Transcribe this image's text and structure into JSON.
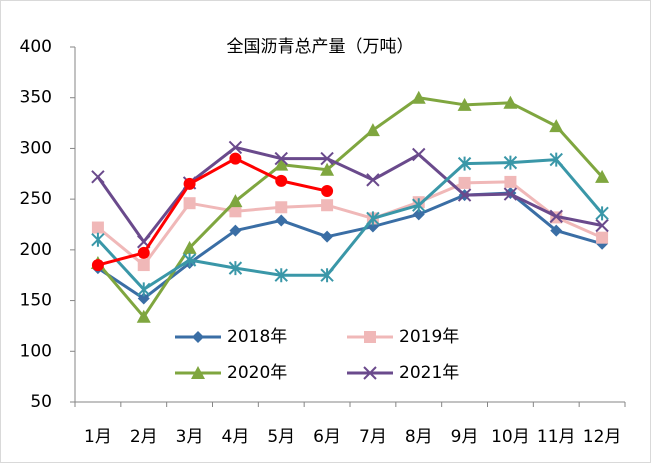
{
  "chart_data": {
    "type": "line",
    "title": "全国沥青总产量（万吨）",
    "categories": [
      "1月",
      "2月",
      "3月",
      "4月",
      "5月",
      "6月",
      "7月",
      "8月",
      "9月",
      "10月",
      "11月",
      "12月"
    ],
    "ylim": [
      50,
      400
    ],
    "yticks": [
      50,
      100,
      150,
      200,
      250,
      300,
      350,
      400
    ],
    "series": [
      {
        "name": "2018年",
        "color": "#3a6ea5",
        "marker": "diamond",
        "values": [
          182,
          152,
          187,
          219,
          229,
          213,
          223,
          235,
          254,
          256,
          219,
          206
        ]
      },
      {
        "name": "2019年",
        "color": "#f0b8b8",
        "marker": "square",
        "values": [
          222,
          185,
          246,
          238,
          242,
          244,
          231,
          247,
          266,
          267,
          232,
          212
        ]
      },
      {
        "name": "2020年",
        "color": "#7fa63f",
        "marker": "triangle",
        "values": [
          187,
          134,
          202,
          248,
          284,
          279,
          318,
          350,
          343,
          345,
          322,
          272
        ]
      },
      {
        "name": "2021年",
        "color": "#6a4a8c",
        "marker": "x",
        "values": [
          272,
          208,
          266,
          301,
          290,
          290,
          269,
          294,
          254,
          255,
          233,
          224
        ]
      },
      {
        "color": "#3a97a8",
        "marker": "star",
        "values": [
          210,
          161,
          190,
          182,
          175,
          175,
          231,
          244,
          285,
          286,
          289,
          236
        ]
      },
      {
        "color": "#ff0000",
        "marker": "circle",
        "values": [
          185,
          197,
          265,
          290,
          268,
          258,
          null,
          null,
          null,
          null,
          null,
          null
        ]
      }
    ]
  }
}
